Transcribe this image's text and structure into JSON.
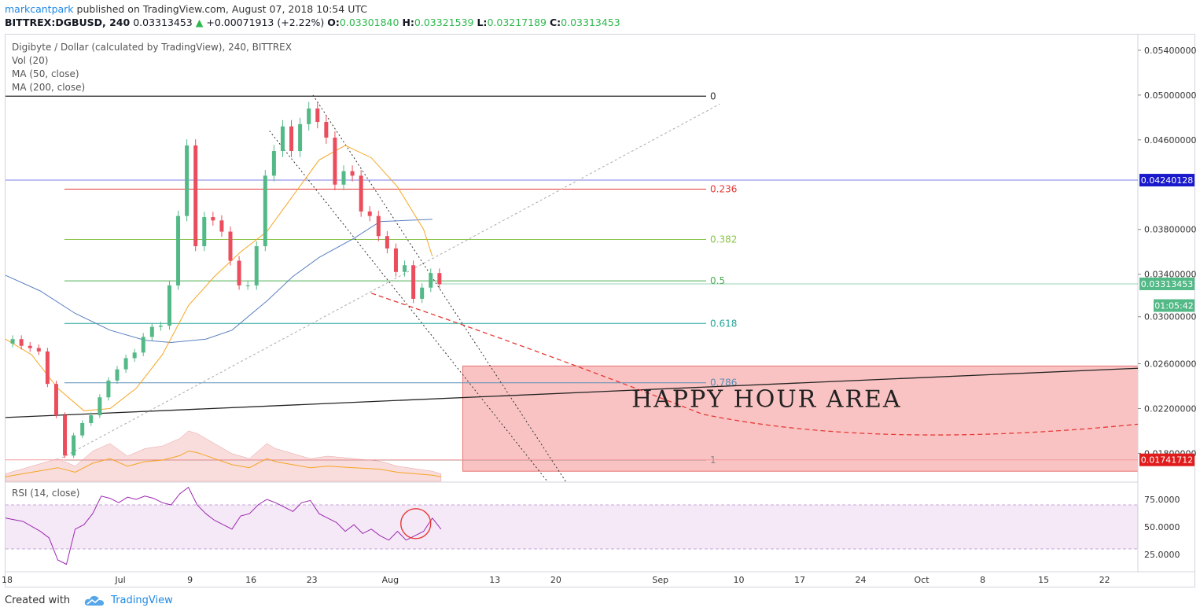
{
  "header": {
    "author": "markcantpark",
    "published": "published on TradingView.com, August 07, 2018 10:54 UTC",
    "symbol": "BITTREX:DGBUSD, 240",
    "last": "0.03313453",
    "arrow": "▲",
    "change": "+0.00071913 (+2.22%)",
    "o_label": "O:",
    "o": "0.03301840",
    "h_label": "H:",
    "h": "0.03321539",
    "l_label": "L:",
    "l": "0.03217189",
    "c_label": "C:",
    "c": "0.03313453"
  },
  "legend": {
    "title": "Digibyte / Dollar (calculated by TradingView), 240, BITTREX",
    "vol": "Vol (20)",
    "ma50": "MA (50, close)",
    "ma200": "MA (200, close)",
    "rsi": "RSI (14, close)"
  },
  "footer": {
    "created": "Created with",
    "brand": "TradingView"
  },
  "annotation": {
    "text": "HAPPY HOUR AREA"
  },
  "colors": {
    "up": "#53b987",
    "down": "#eb4d5c",
    "ma50": "#f5a623",
    "ma200": "#5b7fbf",
    "rsi": "#9c27b0",
    "zone": "#f47a7a"
  },
  "chart_data": {
    "type": "candlestick",
    "price_axis": {
      "ylim": [
        0.0155,
        0.0554
      ],
      "ticks": [
        "0.05400000",
        "0.05000000",
        "0.04600000",
        "0.04240128",
        "0.03800000",
        "0.03400000",
        "0.03313453",
        "01:05:42",
        "0.03000000",
        "0.02600000",
        "0.02200000",
        "0.01800000",
        "0.01741712"
      ],
      "tick_values": [
        0.054,
        0.05,
        0.046,
        0.0424,
        0.038,
        0.034,
        0.0302,
        0.026,
        0.022,
        0.018
      ],
      "tick_labels": [
        "0.05400000",
        "0.05000000",
        "0.04600000",
        "",
        "0.03800000",
        "0.03400000",
        "0.03000000",
        "0.02600000",
        "0.02200000",
        "0.01800000"
      ],
      "badges": [
        {
          "label": "0.04240128",
          "value": 0.04240128,
          "color": "#1a1acc"
        },
        {
          "label": "0.03313453",
          "value": 0.03313453,
          "color": "#53b987"
        },
        {
          "label": "01:05:42",
          "value": 0.0312,
          "color": "#53b987"
        },
        {
          "label": "0.01741712",
          "value": 0.01741712,
          "color": "#e01b1b"
        }
      ]
    },
    "x_axis": {
      "labels": [
        "18",
        "Jul",
        "9",
        "16",
        "23",
        "Aug",
        "13",
        "20",
        "Sep",
        "10",
        "17",
        "24",
        "Oct",
        "8",
        "15",
        "22"
      ],
      "days": [
        0,
        13,
        21,
        28,
        35,
        44,
        56,
        63,
        75,
        84,
        91,
        98,
        105,
        112,
        119,
        126
      ],
      "xlim_days": [
        0,
        130
      ]
    },
    "fibonacci": [
      {
        "level": "0",
        "value": 0.0499,
        "color": "#333333"
      },
      {
        "level": "0.236",
        "value": 0.0416,
        "color": "#e53935"
      },
      {
        "level": "0.382",
        "value": 0.0371,
        "color": "#8bc34a"
      },
      {
        "level": "0.5",
        "value": 0.0334,
        "color": "#4caf50"
      },
      {
        "level": "0.618",
        "value": 0.0296,
        "color": "#26a69a"
      },
      {
        "level": "0.786",
        "value": 0.0243,
        "color": "#5a8fb8"
      },
      {
        "level": "1",
        "value": 0.0174,
        "color": "#888888"
      }
    ],
    "zone": {
      "x_from_day": 52.5,
      "x_to_day": 130,
      "y_from": 0.0164,
      "y_to": 0.0258,
      "label": "HAPPY HOUR AREA"
    },
    "rsi_axis": {
      "ylim": [
        10,
        90
      ],
      "ticks": [
        75,
        50,
        25
      ],
      "tick_labels": [
        "75.0000",
        "50.0000",
        "25.0000"
      ],
      "band": [
        30,
        70
      ]
    },
    "close_path": [
      [
        0,
        0.0278
      ],
      [
        1,
        0.0282
      ],
      [
        2,
        0.0276
      ],
      [
        3,
        0.0274
      ],
      [
        4,
        0.0271
      ],
      [
        5,
        0.0242
      ],
      [
        6,
        0.0214
      ],
      [
        7,
        0.0178
      ],
      [
        8,
        0.0196
      ],
      [
        9,
        0.0207
      ],
      [
        10,
        0.0214
      ],
      [
        11,
        0.023
      ],
      [
        12,
        0.0245
      ],
      [
        13,
        0.0255
      ],
      [
        14,
        0.0265
      ],
      [
        15,
        0.027
      ],
      [
        16,
        0.0284
      ],
      [
        17,
        0.0293
      ],
      [
        18,
        0.0294
      ],
      [
        19,
        0.033
      ],
      [
        20,
        0.0392
      ],
      [
        21,
        0.0455
      ],
      [
        22,
        0.0365
      ],
      [
        23,
        0.0391
      ],
      [
        24,
        0.0388
      ],
      [
        25,
        0.0378
      ],
      [
        26,
        0.0352
      ],
      [
        27,
        0.033
      ],
      [
        28,
        0.033
      ],
      [
        29,
        0.0365
      ],
      [
        30,
        0.0428
      ],
      [
        31,
        0.045
      ],
      [
        32,
        0.0472
      ],
      [
        33,
        0.045
      ],
      [
        34,
        0.0474
      ],
      [
        35,
        0.0488
      ],
      [
        36,
        0.0476
      ],
      [
        37,
        0.0462
      ],
      [
        38,
        0.042
      ],
      [
        39,
        0.0432
      ],
      [
        40,
        0.0428
      ],
      [
        41,
        0.0396
      ],
      [
        42,
        0.0392
      ],
      [
        43,
        0.0374
      ],
      [
        44,
        0.0363
      ],
      [
        45,
        0.0342
      ],
      [
        46,
        0.0348
      ],
      [
        47,
        0.0318
      ],
      [
        48,
        0.0328
      ],
      [
        49,
        0.0341
      ],
      [
        50,
        0.0331
      ]
    ],
    "ma50_path": [
      [
        0,
        0.0282
      ],
      [
        3,
        0.0268
      ],
      [
        6,
        0.0238
      ],
      [
        9,
        0.0218
      ],
      [
        12,
        0.022
      ],
      [
        15,
        0.0238
      ],
      [
        18,
        0.0268
      ],
      [
        21,
        0.0312
      ],
      [
        24,
        0.0338
      ],
      [
        27,
        0.036
      ],
      [
        30,
        0.0378
      ],
      [
        33,
        0.041
      ],
      [
        36,
        0.0442
      ],
      [
        39,
        0.0455
      ],
      [
        42,
        0.0444
      ],
      [
        45,
        0.0418
      ],
      [
        48,
        0.038
      ],
      [
        49,
        0.0356
      ]
    ],
    "ma200_path": [
      [
        0,
        0.0339
      ],
      [
        4,
        0.0325
      ],
      [
        8,
        0.0305
      ],
      [
        12,
        0.029
      ],
      [
        16,
        0.0281
      ],
      [
        19,
        0.0279
      ],
      [
        23,
        0.0282
      ],
      [
        26,
        0.029
      ],
      [
        30,
        0.0316
      ],
      [
        33,
        0.0338
      ],
      [
        36,
        0.0355
      ],
      [
        40,
        0.0372
      ],
      [
        43,
        0.0387
      ],
      [
        46,
        0.0388
      ],
      [
        49,
        0.0389
      ]
    ],
    "rsi_path": [
      [
        0,
        58
      ],
      [
        2,
        55
      ],
      [
        4,
        46
      ],
      [
        5,
        40
      ],
      [
        6,
        20
      ],
      [
        7,
        16
      ],
      [
        8,
        48
      ],
      [
        9,
        52
      ],
      [
        10,
        62
      ],
      [
        11,
        78
      ],
      [
        12,
        76
      ],
      [
        13,
        72
      ],
      [
        14,
        77
      ],
      [
        15,
        75
      ],
      [
        16,
        78
      ],
      [
        17,
        76
      ],
      [
        18,
        72
      ],
      [
        19,
        70
      ],
      [
        20,
        80
      ],
      [
        21,
        86
      ],
      [
        22,
        70
      ],
      [
        23,
        62
      ],
      [
        24,
        56
      ],
      [
        25,
        52
      ],
      [
        26,
        48
      ],
      [
        27,
        60
      ],
      [
        28,
        62
      ],
      [
        29,
        70
      ],
      [
        30,
        75
      ],
      [
        31,
        72
      ],
      [
        32,
        68
      ],
      [
        33,
        64
      ],
      [
        34,
        72
      ],
      [
        35,
        74
      ],
      [
        36,
        62
      ],
      [
        37,
        58
      ],
      [
        38,
        54
      ],
      [
        39,
        46
      ],
      [
        40,
        52
      ],
      [
        41,
        44
      ],
      [
        42,
        48
      ],
      [
        43,
        42
      ],
      [
        44,
        38
      ],
      [
        45,
        46
      ],
      [
        46,
        38
      ],
      [
        47,
        42
      ],
      [
        48,
        46
      ],
      [
        49,
        58
      ],
      [
        50,
        48
      ]
    ],
    "volume_path": [
      [
        0,
        6
      ],
      [
        2,
        10
      ],
      [
        4,
        14
      ],
      [
        6,
        18
      ],
      [
        8,
        12
      ],
      [
        10,
        24
      ],
      [
        12,
        30
      ],
      [
        14,
        20
      ],
      [
        16,
        26
      ],
      [
        18,
        28
      ],
      [
        20,
        34
      ],
      [
        21,
        40
      ],
      [
        22,
        38
      ],
      [
        24,
        30
      ],
      [
        26,
        22
      ],
      [
        28,
        18
      ],
      [
        30,
        30
      ],
      [
        31,
        26
      ],
      [
        33,
        22
      ],
      [
        35,
        18
      ],
      [
        37,
        20
      ],
      [
        40,
        18
      ],
      [
        43,
        16
      ],
      [
        45,
        12
      ],
      [
        47,
        10
      ],
      [
        49,
        8
      ],
      [
        50,
        6
      ]
    ]
  }
}
